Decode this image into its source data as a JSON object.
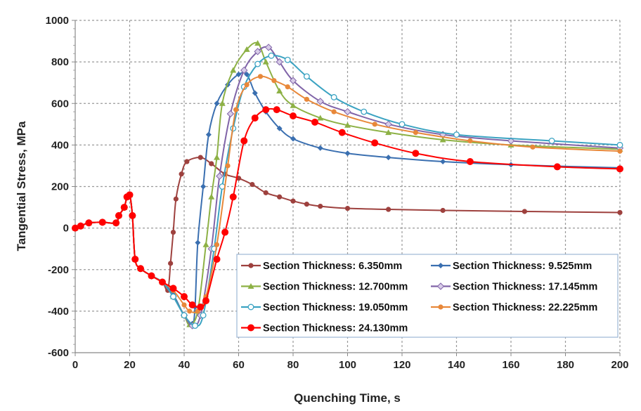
{
  "chart_data": {
    "type": "line",
    "title": "",
    "xlabel": "Quenching Time, s",
    "ylabel": "Tangential Stress, MPa",
    "xlim": [
      0,
      200
    ],
    "ylim": [
      -600,
      1000
    ],
    "xticks": [
      0,
      20,
      40,
      60,
      80,
      100,
      120,
      140,
      160,
      180,
      200
    ],
    "yticks": [
      -600,
      -400,
      -200,
      0,
      200,
      400,
      600,
      800,
      1000
    ],
    "grid": true,
    "legend_placement": "bottom-right",
    "common_start": [
      [
        0,
        0
      ],
      [
        2,
        10
      ],
      [
        5,
        25
      ],
      [
        10,
        28
      ],
      [
        15,
        25
      ],
      [
        16,
        60
      ],
      [
        18,
        100
      ],
      [
        19,
        150
      ],
      [
        20,
        160
      ],
      [
        21,
        60
      ],
      [
        22,
        -150
      ],
      [
        24,
        -195
      ],
      [
        28,
        -230
      ],
      [
        32,
        -260
      ]
    ],
    "series": [
      {
        "name": "Section Thickness: 6.350mm",
        "color": "#9E413E",
        "marker": "circle",
        "points": [
          [
            34,
            -300
          ],
          [
            35,
            -170
          ],
          [
            36,
            -20
          ],
          [
            37,
            140
          ],
          [
            39,
            260
          ],
          [
            41,
            320
          ],
          [
            46,
            340
          ],
          [
            50,
            310
          ],
          [
            55,
            260
          ],
          [
            60,
            240
          ],
          [
            65,
            210
          ],
          [
            70,
            170
          ],
          [
            75,
            150
          ],
          [
            80,
            130
          ],
          [
            85,
            115
          ],
          [
            90,
            105
          ],
          [
            100,
            95
          ],
          [
            115,
            90
          ],
          [
            135,
            85
          ],
          [
            165,
            80
          ],
          [
            200,
            75
          ]
        ]
      },
      {
        "name": "Section Thickness: 9.525mm",
        "color": "#3A6FB0",
        "marker": "diamond",
        "points": [
          [
            36,
            -320
          ],
          [
            40,
            -420
          ],
          [
            43,
            -460
          ],
          [
            44,
            -380
          ],
          [
            45,
            -70
          ],
          [
            47,
            200
          ],
          [
            49,
            450
          ],
          [
            52,
            600
          ],
          [
            56,
            690
          ],
          [
            60,
            740
          ],
          [
            63,
            740
          ],
          [
            66,
            650
          ],
          [
            70,
            560
          ],
          [
            75,
            480
          ],
          [
            80,
            430
          ],
          [
            90,
            385
          ],
          [
            100,
            360
          ],
          [
            115,
            340
          ],
          [
            135,
            320
          ],
          [
            160,
            305
          ],
          [
            200,
            290
          ]
        ]
      },
      {
        "name": "Section Thickness: 12.700mm",
        "color": "#8DB145",
        "marker": "triangle",
        "points": [
          [
            36,
            -330
          ],
          [
            40,
            -420
          ],
          [
            42,
            -465
          ],
          [
            45,
            -400
          ],
          [
            48,
            -80
          ],
          [
            50,
            150
          ],
          [
            52,
            340
          ],
          [
            54,
            600
          ],
          [
            58,
            760
          ],
          [
            63,
            860
          ],
          [
            67,
            890
          ],
          [
            70,
            800
          ],
          [
            75,
            660
          ],
          [
            80,
            590
          ],
          [
            90,
            530
          ],
          [
            100,
            495
          ],
          [
            115,
            460
          ],
          [
            135,
            425
          ],
          [
            160,
            400
          ],
          [
            200,
            380
          ]
        ]
      },
      {
        "name": "Section Thickness: 17.145mm",
        "color": "#8064A8",
        "marker": "diamond-open",
        "points": [
          [
            36,
            -330
          ],
          [
            40,
            -420
          ],
          [
            43,
            -470
          ],
          [
            46,
            -420
          ],
          [
            50,
            -100
          ],
          [
            53,
            250
          ],
          [
            57,
            550
          ],
          [
            62,
            760
          ],
          [
            67,
            850
          ],
          [
            71,
            870
          ],
          [
            75,
            800
          ],
          [
            80,
            710
          ],
          [
            90,
            610
          ],
          [
            100,
            560
          ],
          [
            115,
            500
          ],
          [
            135,
            450
          ],
          [
            160,
            420
          ],
          [
            200,
            385
          ]
        ]
      },
      {
        "name": "Section Thickness: 19.050mm",
        "color": "#3BA3C2",
        "marker": "circle-open",
        "points": [
          [
            36,
            -330
          ],
          [
            40,
            -420
          ],
          [
            44,
            -470
          ],
          [
            47,
            -420
          ],
          [
            51,
            -100
          ],
          [
            54,
            200
          ],
          [
            58,
            480
          ],
          [
            62,
            680
          ],
          [
            67,
            790
          ],
          [
            72,
            830
          ],
          [
            78,
            810
          ],
          [
            85,
            730
          ],
          [
            95,
            630
          ],
          [
            106,
            560
          ],
          [
            120,
            500
          ],
          [
            140,
            450
          ],
          [
            175,
            420
          ],
          [
            200,
            400
          ]
        ]
      },
      {
        "name": "Section Thickness: 22.225mm",
        "color": "#E8883A",
        "marker": "circle",
        "points": [
          [
            36,
            -300
          ],
          [
            40,
            -370
          ],
          [
            42,
            -400
          ],
          [
            45,
            -400
          ],
          [
            48,
            -330
          ],
          [
            52,
            -80
          ],
          [
            56,
            300
          ],
          [
            59,
            570
          ],
          [
            63,
            690
          ],
          [
            68,
            730
          ],
          [
            73,
            710
          ],
          [
            78,
            680
          ],
          [
            85,
            620
          ],
          [
            95,
            560
          ],
          [
            110,
            500
          ],
          [
            125,
            460
          ],
          [
            145,
            420
          ],
          [
            168,
            390
          ],
          [
            200,
            370
          ]
        ]
      },
      {
        "name": "Section Thickness: 24.130mm",
        "color": "#FF0000",
        "marker": "circle-big",
        "points": [
          [
            36,
            -290
          ],
          [
            40,
            -330
          ],
          [
            43,
            -370
          ],
          [
            46,
            -380
          ],
          [
            48,
            -350
          ],
          [
            52,
            -150
          ],
          [
            55,
            -20
          ],
          [
            58,
            150
          ],
          [
            62,
            420
          ],
          [
            66,
            530
          ],
          [
            70,
            570
          ],
          [
            74,
            570
          ],
          [
            80,
            540
          ],
          [
            88,
            510
          ],
          [
            98,
            460
          ],
          [
            110,
            410
          ],
          [
            125,
            360
          ],
          [
            145,
            320
          ],
          [
            177,
            295
          ],
          [
            200,
            285
          ]
        ]
      }
    ]
  }
}
